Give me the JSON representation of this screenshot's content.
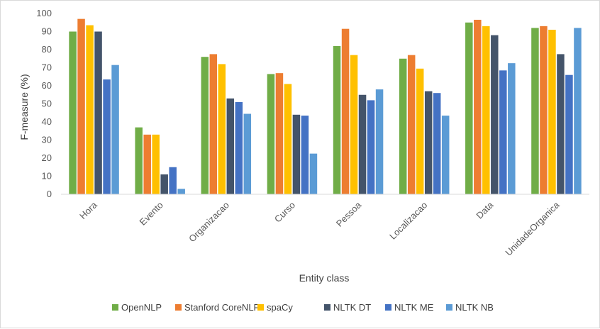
{
  "chart_data": {
    "type": "bar",
    "title": "",
    "xlabel": "Entity class",
    "ylabel": "F-measure (%)",
    "ylim": [
      0,
      100
    ],
    "yticks": [
      0,
      10,
      20,
      30,
      40,
      50,
      60,
      70,
      80,
      90,
      100
    ],
    "grid": false,
    "legend_position": "bottom",
    "categories": [
      "Hora",
      "Evento",
      "Organizacao",
      "Curso",
      "Pessoa",
      "Localizacao",
      "Data",
      "UnidadeOrganica"
    ],
    "series": [
      {
        "name": "OpenNLP",
        "color": "#70ad47",
        "values": [
          90,
          37,
          76,
          66.5,
          82,
          75,
          95,
          92
        ]
      },
      {
        "name": "Stanford CoreNLP",
        "color": "#ed7d31",
        "values": [
          97,
          33,
          77.5,
          67,
          91.5,
          77,
          96.5,
          93
        ]
      },
      {
        "name": "spaCy",
        "color": "#ffc000",
        "values": [
          93.5,
          33,
          72,
          61,
          77,
          69.5,
          93,
          91
        ]
      },
      {
        "name": "NLTK DT",
        "color": "#44546a",
        "values": [
          90,
          11,
          53,
          44,
          55,
          57,
          88,
          77.5
        ]
      },
      {
        "name": "NLTK ME",
        "color": "#4472c4",
        "values": [
          63.5,
          15,
          51,
          43.5,
          52,
          56,
          68.5,
          66
        ]
      },
      {
        "name": "NLTK NB",
        "color": "#5b9bd5",
        "values": [
          71.5,
          3,
          44.5,
          22.5,
          58,
          43.5,
          72.5,
          92
        ]
      }
    ]
  }
}
